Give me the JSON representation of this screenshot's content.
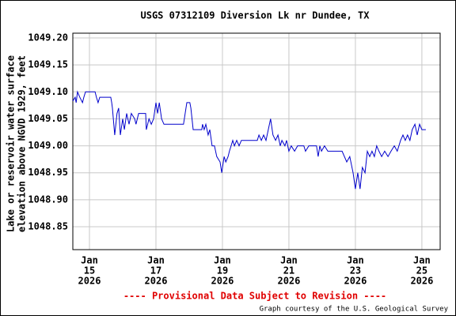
{
  "chart_data": {
    "type": "line",
    "title": "USGS 07312109 Diversion Lk nr Dundee, TX",
    "y_label": [
      "Lake or reservoir water surface",
      "elevation above NGVD 1929, feet"
    ],
    "footer": "---- Provisional Data Subject to Revision ----",
    "credit": "Graph courtesy of the U.S. Geological Survey",
    "xlim": [
      14.5,
      25.55
    ],
    "ylim": [
      1048.8075,
      1049.2088
    ],
    "xticks": [
      {
        "value": 15,
        "label": [
          "Jan",
          "15",
          "2026"
        ]
      },
      {
        "value": 17,
        "label": [
          "Jan",
          "17",
          "2026"
        ]
      },
      {
        "value": 19,
        "label": [
          "Jan",
          "19",
          "2026"
        ]
      },
      {
        "value": 21,
        "label": [
          "Jan",
          "21",
          "2026"
        ]
      },
      {
        "value": 23,
        "label": [
          "Jan",
          "23",
          "2026"
        ]
      },
      {
        "value": 25,
        "label": [
          "Jan",
          "25",
          "2026"
        ]
      }
    ],
    "yticks": [
      {
        "value": 1049.2,
        "label": "1049.20"
      },
      1049.15,
      {
        "value": 1049.1,
        "label": "1049.10"
      },
      1049.05,
      {
        "value": 1049.0,
        "label": "1049.00"
      },
      1048.95,
      {
        "value": 1048.9,
        "label": "1048.90"
      },
      1048.85
    ],
    "grid": true,
    "series": [
      {
        "color": "#0000cc",
        "x": [
          14.5,
          14.57,
          14.6,
          14.64,
          14.71,
          14.79,
          14.83,
          14.88,
          15.17,
          15.21,
          15.26,
          15.31,
          15.64,
          15.67,
          15.69,
          15.76,
          15.83,
          15.88,
          15.93,
          16.0,
          16.05,
          16.12,
          16.19,
          16.26,
          16.36,
          16.4,
          16.48,
          16.69,
          16.71,
          16.79,
          16.86,
          16.93,
          17.0,
          17.05,
          17.1,
          17.17,
          17.24,
          17.83,
          17.88,
          17.93,
          18.02,
          18.05,
          18.12,
          18.38,
          18.4,
          18.45,
          18.5,
          18.57,
          18.62,
          18.69,
          18.76,
          18.83,
          18.93,
          18.98,
          19.05,
          19.1,
          19.17,
          19.21,
          19.26,
          19.31,
          19.36,
          19.43,
          19.5,
          19.57,
          20.05,
          20.1,
          20.17,
          20.24,
          20.31,
          20.38,
          20.45,
          20.52,
          20.6,
          20.67,
          20.74,
          20.79,
          20.88,
          20.93,
          21.0,
          21.07,
          21.17,
          21.26,
          21.45,
          21.5,
          21.6,
          21.83,
          21.88,
          21.93,
          21.98,
          22.07,
          22.17,
          22.6,
          22.74,
          22.83,
          22.93,
          23.0,
          23.07,
          23.14,
          23.21,
          23.29,
          23.36,
          23.43,
          23.5,
          23.57,
          23.64,
          23.71,
          23.79,
          23.88,
          23.98,
          24.07,
          24.17,
          24.26,
          24.36,
          24.43,
          24.5,
          24.57,
          24.64,
          24.71,
          24.79,
          24.86,
          24.93,
          25.0,
          25.12
        ],
        "values": [
          1049.083,
          1049.09,
          1049.08,
          1049.1,
          1049.09,
          1049.08,
          1049.09,
          1049.1,
          1049.1,
          1049.09,
          1049.08,
          1049.09,
          1049.09,
          1049.08,
          1049.07,
          1049.02,
          1049.06,
          1049.07,
          1049.02,
          1049.05,
          1049.03,
          1049.06,
          1049.04,
          1049.06,
          1049.05,
          1049.04,
          1049.06,
          1049.06,
          1049.03,
          1049.05,
          1049.04,
          1049.05,
          1049.08,
          1049.06,
          1049.08,
          1049.05,
          1049.04,
          1049.04,
          1049.06,
          1049.08,
          1049.08,
          1049.07,
          1049.03,
          1049.03,
          1049.04,
          1049.03,
          1049.04,
          1049.02,
          1049.03,
          1049.0,
          1049.0,
          1048.98,
          1048.97,
          1048.95,
          1048.98,
          1048.97,
          1048.98,
          1048.99,
          1049.0,
          1049.01,
          1049.0,
          1049.01,
          1049.0,
          1049.01,
          1049.01,
          1049.02,
          1049.01,
          1049.02,
          1049.01,
          1049.03,
          1049.05,
          1049.02,
          1049.01,
          1049.02,
          1049.0,
          1049.01,
          1049.0,
          1049.01,
          1048.99,
          1049.0,
          1048.99,
          1049.0,
          1049.0,
          1048.99,
          1049.0,
          1049.0,
          1048.98,
          1049.0,
          1048.99,
          1049.0,
          1048.99,
          1048.99,
          1048.97,
          1048.98,
          1048.95,
          1048.92,
          1048.95,
          1048.92,
          1048.96,
          1048.95,
          1048.99,
          1048.98,
          1048.99,
          1048.98,
          1049.0,
          1048.99,
          1048.98,
          1048.99,
          1048.98,
          1048.99,
          1049.0,
          1048.99,
          1049.01,
          1049.02,
          1049.01,
          1049.02,
          1049.01,
          1049.03,
          1049.04,
          1049.02,
          1049.04,
          1049.03,
          1049.03
        ]
      }
    ]
  }
}
